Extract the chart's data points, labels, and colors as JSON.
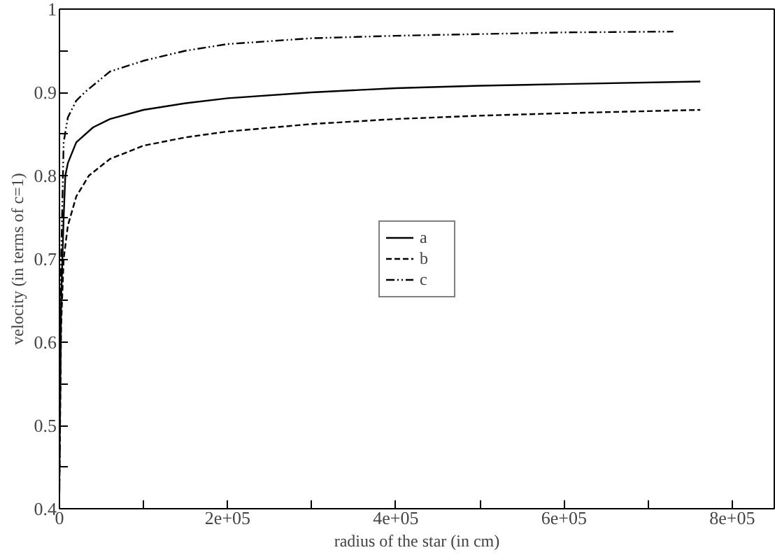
{
  "chart_data": {
    "type": "line",
    "xlabel": "radius of the star (in cm)",
    "ylabel": "velocity (in terms of c=1)",
    "xlim": [
      0,
      850000
    ],
    "ylim": [
      0.4,
      1
    ],
    "xticks": [
      {
        "value": 0,
        "label": "0"
      },
      {
        "value": 100000,
        "label": null
      },
      {
        "value": 200000,
        "label": "2e+05"
      },
      {
        "value": 300000,
        "label": null
      },
      {
        "value": 400000,
        "label": "4e+05"
      },
      {
        "value": 500000,
        "label": null
      },
      {
        "value": 600000,
        "label": "6e+05"
      },
      {
        "value": 700000,
        "label": null
      },
      {
        "value": 800000,
        "label": "8e+05"
      }
    ],
    "yticks": [
      0.4,
      {
        "value": 0.45,
        "label": null
      },
      0.5,
      {
        "value": 0.55,
        "label": null
      },
      0.6,
      {
        "value": 0.65,
        "label": null
      },
      0.7,
      {
        "value": 0.75,
        "label": null
      },
      0.8,
      {
        "value": 0.85,
        "label": null
      },
      0.9,
      {
        "value": 0.95,
        "label": null
      },
      1
    ],
    "grid": false,
    "legend": "center",
    "marker": "none",
    "series": [
      {
        "name": "a",
        "color": "#000000",
        "line_style": "solid",
        "x": [
          0,
          2000,
          5000,
          7000,
          10000,
          20000,
          40000,
          60000,
          100000,
          150000,
          200000,
          300000,
          400000,
          500000,
          600000,
          762000
        ],
        "values": [
          0.45,
          0.65,
          0.75,
          0.8,
          0.815,
          0.84,
          0.858,
          0.868,
          0.879,
          0.887,
          0.893,
          0.9,
          0.905,
          0.908,
          0.91,
          0.913
        ]
      },
      {
        "name": "b",
        "color": "#000000",
        "line_style": "dashed",
        "x": [
          0,
          2000,
          5000,
          10000,
          20000,
          35000,
          60000,
          100000,
          150000,
          200000,
          300000,
          400000,
          500000,
          600000,
          762000
        ],
        "values": [
          0.43,
          0.62,
          0.7,
          0.74,
          0.775,
          0.8,
          0.82,
          0.836,
          0.846,
          0.853,
          0.862,
          0.868,
          0.872,
          0.875,
          0.879
        ]
      },
      {
        "name": "c",
        "color": "#000000",
        "line_style": "dashdot",
        "x": [
          0,
          2000,
          5000,
          10000,
          20000,
          30000,
          60000,
          100000,
          150000,
          200000,
          300000,
          400000,
          500000,
          600000,
          730000
        ],
        "values": [
          0.42,
          0.7,
          0.84,
          0.87,
          0.89,
          0.9,
          0.925,
          0.938,
          0.95,
          0.958,
          0.965,
          0.968,
          0.97,
          0.972,
          0.973
        ]
      }
    ]
  }
}
